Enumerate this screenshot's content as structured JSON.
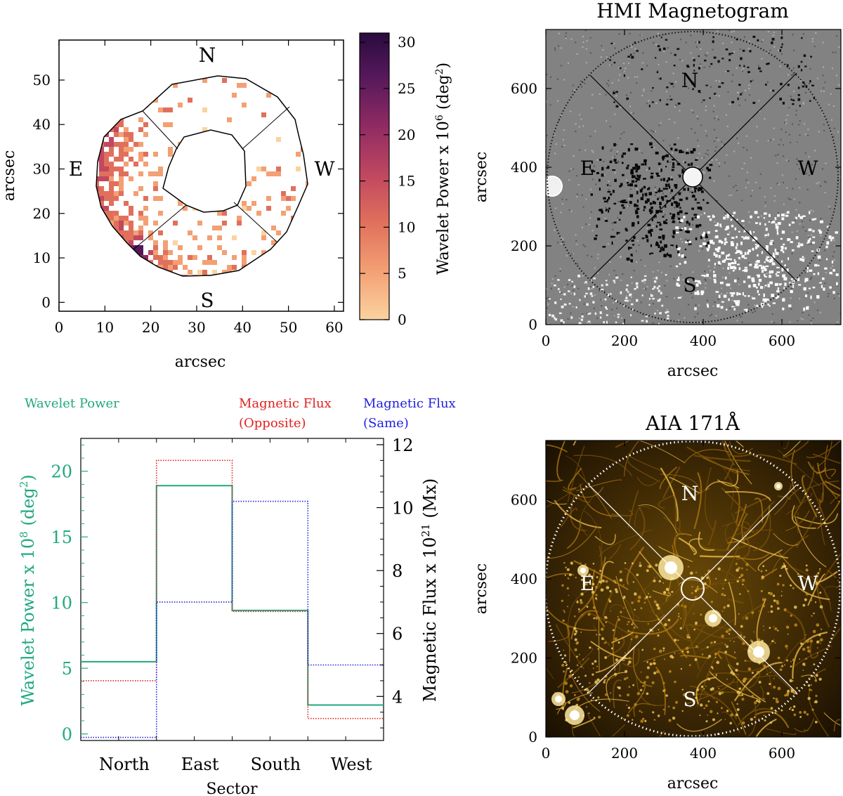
{
  "chart_data": [
    {
      "type": "heatmap",
      "panel": "top-left",
      "title": "",
      "xlabel": "arcsec",
      "ylabel": "arcsec",
      "xlim": [
        0,
        62
      ],
      "ylim": [
        -2,
        59
      ],
      "xticks": [
        0,
        10,
        20,
        30,
        40,
        50,
        60
      ],
      "yticks": [
        0,
        10,
        20,
        30,
        40,
        50
      ],
      "sector_labels": {
        "north": "N",
        "south": "S",
        "east": "E",
        "west": "W"
      },
      "colorbar": {
        "label": "Wavelet Power x 10",
        "label_exp": "6",
        "label_unit_pre": " (deg",
        "label_unit_exp": "2",
        "label_unit_post": ")",
        "range": [
          0,
          31
        ],
        "ticks": [
          0,
          5,
          10,
          15,
          20,
          25,
          30
        ],
        "colors": [
          "#fbd3a0",
          "#f3a074",
          "#e0705c",
          "#c14860",
          "#8e2a63",
          "#55185a",
          "#2a0b3f"
        ]
      }
    },
    {
      "type": "image",
      "panel": "top-right",
      "title": "HMI Magnetogram",
      "xlabel": "arcsec",
      "ylabel": "arcsec",
      "xlim": [
        0,
        750
      ],
      "ylim": [
        0,
        750
      ],
      "xticks": [
        0,
        200,
        400,
        600
      ],
      "yticks": [
        0,
        200,
        400,
        600
      ],
      "sector_labels": {
        "north": "N",
        "south": "S",
        "east": "E",
        "west": "W"
      }
    },
    {
      "type": "line",
      "step": true,
      "panel": "bottom-left",
      "xlabel": "Sector",
      "categories": [
        "North",
        "East",
        "South",
        "West"
      ],
      "ylabel_left": "Wavelet Power x 10",
      "ylabel_left_exp": "8",
      "ylabel_left_unit_pre": " (deg",
      "ylabel_left_unit_exp": "2",
      "ylabel_left_unit_post": ")",
      "ylim_left": [
        -0.5,
        22.5
      ],
      "yticks_left": [
        0,
        5,
        10,
        15,
        20
      ],
      "ylabel_right": "Magnetic Flux x 10",
      "ylabel_right_exp": "21",
      "ylabel_right_unit": " (Mx)",
      "ylim_right": [
        2.6,
        12.2
      ],
      "yticks_right": [
        4,
        6,
        8,
        10,
        12
      ],
      "legend": [
        {
          "lines": [
            "Wavelet Power"
          ],
          "color": "#20a880"
        },
        {
          "lines": [
            "Magnetic Flux",
            "(Opposite)"
          ],
          "color": "#e02020"
        },
        {
          "lines": [
            "Magnetic Flux",
            "(Same)"
          ],
          "color": "#2020e0"
        }
      ],
      "series": [
        {
          "name": "Wavelet Power",
          "axis": "left",
          "color": "#20a880",
          "style": "solid",
          "values": [
            5.5,
            18.9,
            9.4,
            2.2
          ]
        },
        {
          "name": "Magnetic Flux (Opposite)",
          "axis": "right",
          "color": "#e02020",
          "style": "dotted",
          "values": [
            4.5,
            11.5,
            6.7,
            3.3
          ]
        },
        {
          "name": "Magnetic Flux (Same)",
          "axis": "right",
          "color": "#2020e0",
          "style": "dotted",
          "values": [
            2.7,
            7.0,
            10.2,
            5.0
          ]
        }
      ]
    },
    {
      "type": "image",
      "panel": "bottom-right",
      "title": "AIA 171Å",
      "xlabel": "arcsec",
      "ylabel": "arcsec",
      "xlim": [
        0,
        750
      ],
      "ylim": [
        0,
        750
      ],
      "xticks": [
        0,
        200,
        400,
        600
      ],
      "yticks": [
        0,
        200,
        400,
        600
      ],
      "sector_labels": {
        "north": "N",
        "south": "S",
        "east": "E",
        "west": "W"
      }
    }
  ]
}
